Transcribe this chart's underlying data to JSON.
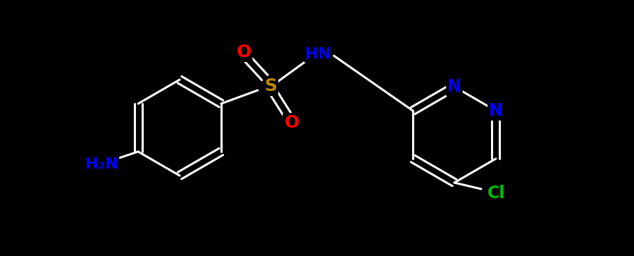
{
  "background_color": "#000000",
  "figsize": [
    9.0,
    3.63
  ],
  "dpi": 100,
  "bond_color": "#FFFFFF",
  "lw": 2.2,
  "atoms": {
    "S": {
      "color": "#B8860B"
    },
    "O": {
      "color": "#FF0000"
    },
    "N": {
      "color": "#0000FF"
    },
    "NH": {
      "color": "#0000FF"
    },
    "Cl": {
      "color": "#00BB00"
    },
    "NH2": {
      "color": "#0000FF"
    }
  }
}
